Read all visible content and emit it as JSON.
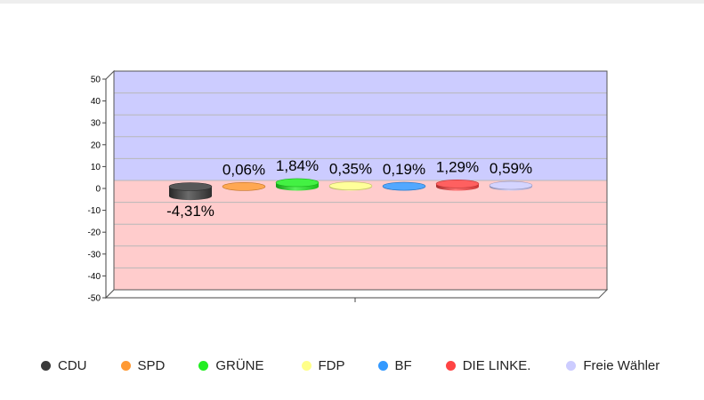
{
  "chart_data": {
    "type": "bar",
    "categories": [
      "CDU",
      "SPD",
      "GRÜNE",
      "FDP",
      "BF",
      "DIE LINKE.",
      "Freie Wähler"
    ],
    "values": [
      -4.31,
      0.06,
      1.84,
      0.35,
      0.19,
      1.29,
      0.59
    ],
    "value_labels": [
      "-4,31%",
      "0,06%",
      "1,84%",
      "0,35%",
      "0,19%",
      "1,29%",
      "0,59%"
    ],
    "colors": [
      "#3a3a3a",
      "#ff9933",
      "#22ee22",
      "#ffff88",
      "#3399ff",
      "#ff4444",
      "#ccccff"
    ],
    "y_ticks": [
      "50",
      "40",
      "30",
      "20",
      "10",
      "0",
      "-10",
      "-20",
      "-30",
      "-40",
      "-50"
    ],
    "ylim": [
      -50,
      50
    ],
    "grid": true,
    "positive_region_color": "#ccccff",
    "negative_region_color": "#ffcccc",
    "legend_position": "bottom",
    "legend": [
      "CDU",
      "SPD",
      "GRÜNE",
      "FDP",
      "BF",
      "DIE LINKE.",
      "Freie Wähler"
    ]
  }
}
